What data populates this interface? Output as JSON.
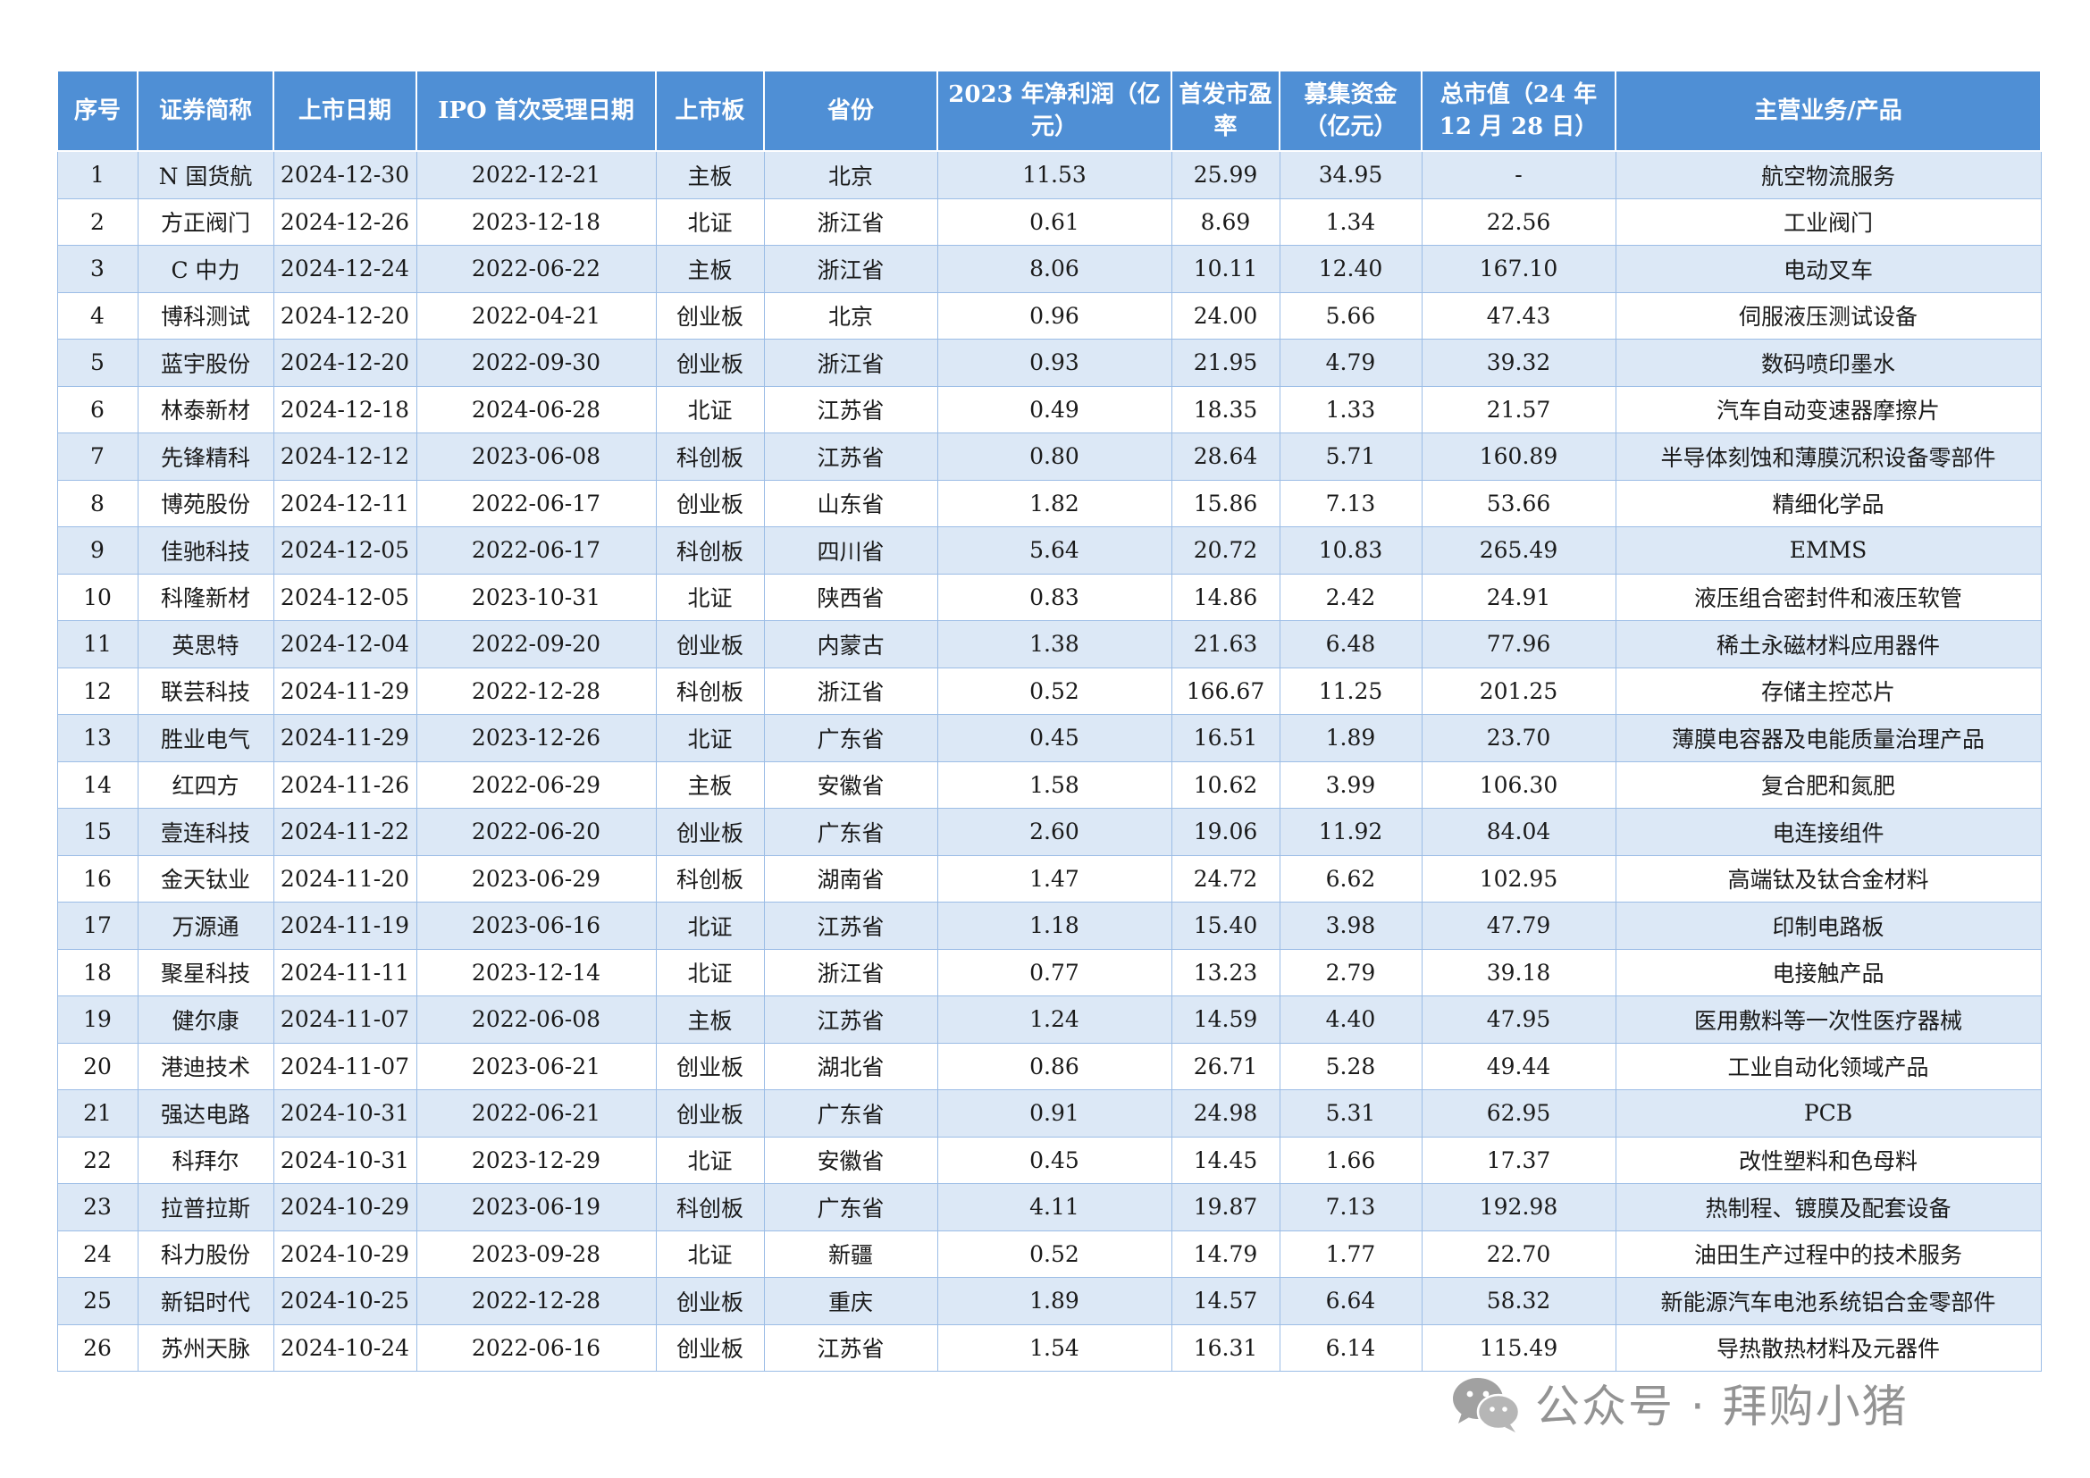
{
  "table": {
    "headers": [
      "序号",
      "证券简称",
      "上市日期",
      "IPO 首次受理日期",
      "上市板",
      "省份",
      "2023 年净利润（亿元）",
      "首发市盈率",
      "募集资金（亿元）",
      "总市值（24 年 12 月 28 日）",
      "主营业务/产品"
    ],
    "rows": [
      [
        "1",
        "N 国货航",
        "2024-12-30",
        "2022-12-21",
        "主板",
        "北京",
        "11.53",
        "25.99",
        "34.95",
        "-",
        "航空物流服务"
      ],
      [
        "2",
        "方正阀门",
        "2024-12-26",
        "2023-12-18",
        "北证",
        "浙江省",
        "0.61",
        "8.69",
        "1.34",
        "22.56",
        "工业阀门"
      ],
      [
        "3",
        "C 中力",
        "2024-12-24",
        "2022-06-22",
        "主板",
        "浙江省",
        "8.06",
        "10.11",
        "12.40",
        "167.10",
        "电动叉车"
      ],
      [
        "4",
        "博科测试",
        "2024-12-20",
        "2022-04-21",
        "创业板",
        "北京",
        "0.96",
        "24.00",
        "5.66",
        "47.43",
        "伺服液压测试设备"
      ],
      [
        "5",
        "蓝宇股份",
        "2024-12-20",
        "2022-09-30",
        "创业板",
        "浙江省",
        "0.93",
        "21.95",
        "4.79",
        "39.32",
        "数码喷印墨水"
      ],
      [
        "6",
        "林泰新材",
        "2024-12-18",
        "2024-06-28",
        "北证",
        "江苏省",
        "0.49",
        "18.35",
        "1.33",
        "21.57",
        "汽车自动变速器摩擦片"
      ],
      [
        "7",
        "先锋精科",
        "2024-12-12",
        "2023-06-08",
        "科创板",
        "江苏省",
        "0.80",
        "28.64",
        "5.71",
        "160.89",
        "半导体刻蚀和薄膜沉积设备零部件"
      ],
      [
        "8",
        "博苑股份",
        "2024-12-11",
        "2022-06-17",
        "创业板",
        "山东省",
        "1.82",
        "15.86",
        "7.13",
        "53.66",
        "精细化学品"
      ],
      [
        "9",
        "佳驰科技",
        "2024-12-05",
        "2022-06-17",
        "科创板",
        "四川省",
        "5.64",
        "20.72",
        "10.83",
        "265.49",
        "EMMS"
      ],
      [
        "10",
        "科隆新材",
        "2024-12-05",
        "2023-10-31",
        "北证",
        "陕西省",
        "0.83",
        "14.86",
        "2.42",
        "24.91",
        "液压组合密封件和液压软管"
      ],
      [
        "11",
        "英思特",
        "2024-12-04",
        "2022-09-20",
        "创业板",
        "内蒙古",
        "1.38",
        "21.63",
        "6.48",
        "77.96",
        "稀土永磁材料应用器件"
      ],
      [
        "12",
        "联芸科技",
        "2024-11-29",
        "2022-12-28",
        "科创板",
        "浙江省",
        "0.52",
        "166.67",
        "11.25",
        "201.25",
        "存储主控芯片"
      ],
      [
        "13",
        "胜业电气",
        "2024-11-29",
        "2023-12-26",
        "北证",
        "广东省",
        "0.45",
        "16.51",
        "1.89",
        "23.70",
        "薄膜电容器及电能质量治理产品"
      ],
      [
        "14",
        "红四方",
        "2024-11-26",
        "2022-06-29",
        "主板",
        "安徽省",
        "1.58",
        "10.62",
        "3.99",
        "106.30",
        "复合肥和氮肥"
      ],
      [
        "15",
        "壹连科技",
        "2024-11-22",
        "2022-06-20",
        "创业板",
        "广东省",
        "2.60",
        "19.06",
        "11.92",
        "84.04",
        "电连接组件"
      ],
      [
        "16",
        "金天钛业",
        "2024-11-20",
        "2023-06-29",
        "科创板",
        "湖南省",
        "1.47",
        "24.72",
        "6.62",
        "102.95",
        "高端钛及钛合金材料"
      ],
      [
        "17",
        "万源通",
        "2024-11-19",
        "2023-06-16",
        "北证",
        "江苏省",
        "1.18",
        "15.40",
        "3.98",
        "47.79",
        "印制电路板"
      ],
      [
        "18",
        "聚星科技",
        "2024-11-11",
        "2023-12-14",
        "北证",
        "浙江省",
        "0.77",
        "13.23",
        "2.79",
        "39.18",
        "电接触产品"
      ],
      [
        "19",
        "健尔康",
        "2024-11-07",
        "2022-06-08",
        "主板",
        "江苏省",
        "1.24",
        "14.59",
        "4.40",
        "47.95",
        "医用敷料等一次性医疗器械"
      ],
      [
        "20",
        "港迪技术",
        "2024-11-07",
        "2023-06-21",
        "创业板",
        "湖北省",
        "0.86",
        "26.71",
        "5.28",
        "49.44",
        "工业自动化领域产品"
      ],
      [
        "21",
        "强达电路",
        "2024-10-31",
        "2022-06-21",
        "创业板",
        "广东省",
        "0.91",
        "24.98",
        "5.31",
        "62.95",
        "PCB"
      ],
      [
        "22",
        "科拜尔",
        "2024-10-31",
        "2023-12-29",
        "北证",
        "安徽省",
        "0.45",
        "14.45",
        "1.66",
        "17.37",
        "改性塑料和色母料"
      ],
      [
        "23",
        "拉普拉斯",
        "2024-10-29",
        "2023-06-19",
        "科创板",
        "广东省",
        "4.11",
        "19.87",
        "7.13",
        "192.98",
        "热制程、镀膜及配套设备"
      ],
      [
        "24",
        "科力股份",
        "2024-10-29",
        "2023-09-28",
        "北证",
        "新疆",
        "0.52",
        "14.79",
        "1.77",
        "22.70",
        "油田生产过程中的技术服务"
      ],
      [
        "25",
        "新铝时代",
        "2024-10-25",
        "2022-12-28",
        "创业板",
        "重庆",
        "1.89",
        "14.57",
        "6.64",
        "58.32",
        "新能源汽车电池系统铝合金零部件"
      ],
      [
        "26",
        "苏州天脉",
        "2024-10-24",
        "2022-06-16",
        "创业板",
        "江苏省",
        "1.54",
        "16.31",
        "6.14",
        "115.49",
        "导热散热材料及元器件"
      ]
    ]
  },
  "watermark": {
    "text": "公众号 · 拜购小猪",
    "icon": "wechat-icon"
  }
}
